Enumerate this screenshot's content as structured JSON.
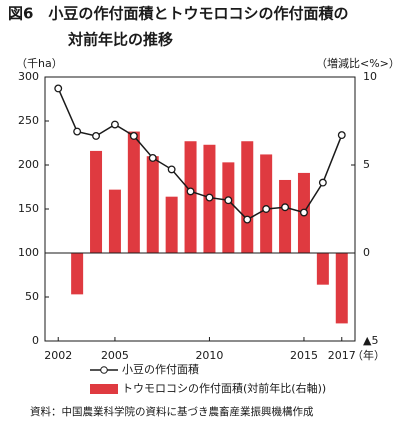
{
  "chart_data": {
    "type": "bar-line",
    "title": [
      "図6　小豆の作付面積とトウモロコシの作付面積の",
      "対前年比の推移"
    ],
    "y_label": "（千ha）",
    "y2_label": "（増減比<%>）",
    "x_label": "（年）",
    "source": "資料：中国農業科学院の資料に基づき農畜産業振興機構作成",
    "x": [
      2002,
      2003,
      2004,
      2005,
      2006,
      2007,
      2008,
      2009,
      2010,
      2011,
      2012,
      2013,
      2014,
      2015,
      2016,
      2017
    ],
    "xlim": [
      2001.3,
      2017.7
    ],
    "xticks": [
      2002,
      2005,
      2010,
      2015,
      2017
    ],
    "ylim": [
      0,
      300
    ],
    "yticks": [
      0,
      50,
      100,
      150,
      200,
      250,
      300
    ],
    "y2lim": [
      -5,
      10
    ],
    "y2ticks": [
      {
        "value": -5,
        "label": "▲5"
      },
      0,
      5,
      10
    ],
    "series": [
      {
        "name": "小豆の作付面積",
        "type": "line",
        "color": "#1a1a1a",
        "values": [
          287,
          238,
          233,
          246,
          233,
          208,
          195,
          170,
          163,
          160,
          138,
          150,
          152,
          146,
          180,
          234
        ]
      },
      {
        "name": "トウモロコシの作付面積(対前年比(右軸))",
        "type": "bar",
        "axis": "y2",
        "color": "#df3a40",
        "values": [
          null,
          -2.35,
          5.8,
          3.6,
          6.9,
          5.5,
          3.2,
          6.35,
          6.15,
          5.15,
          6.35,
          5.6,
          4.15,
          4.55,
          -1.8,
          -4.0
        ]
      }
    ]
  }
}
